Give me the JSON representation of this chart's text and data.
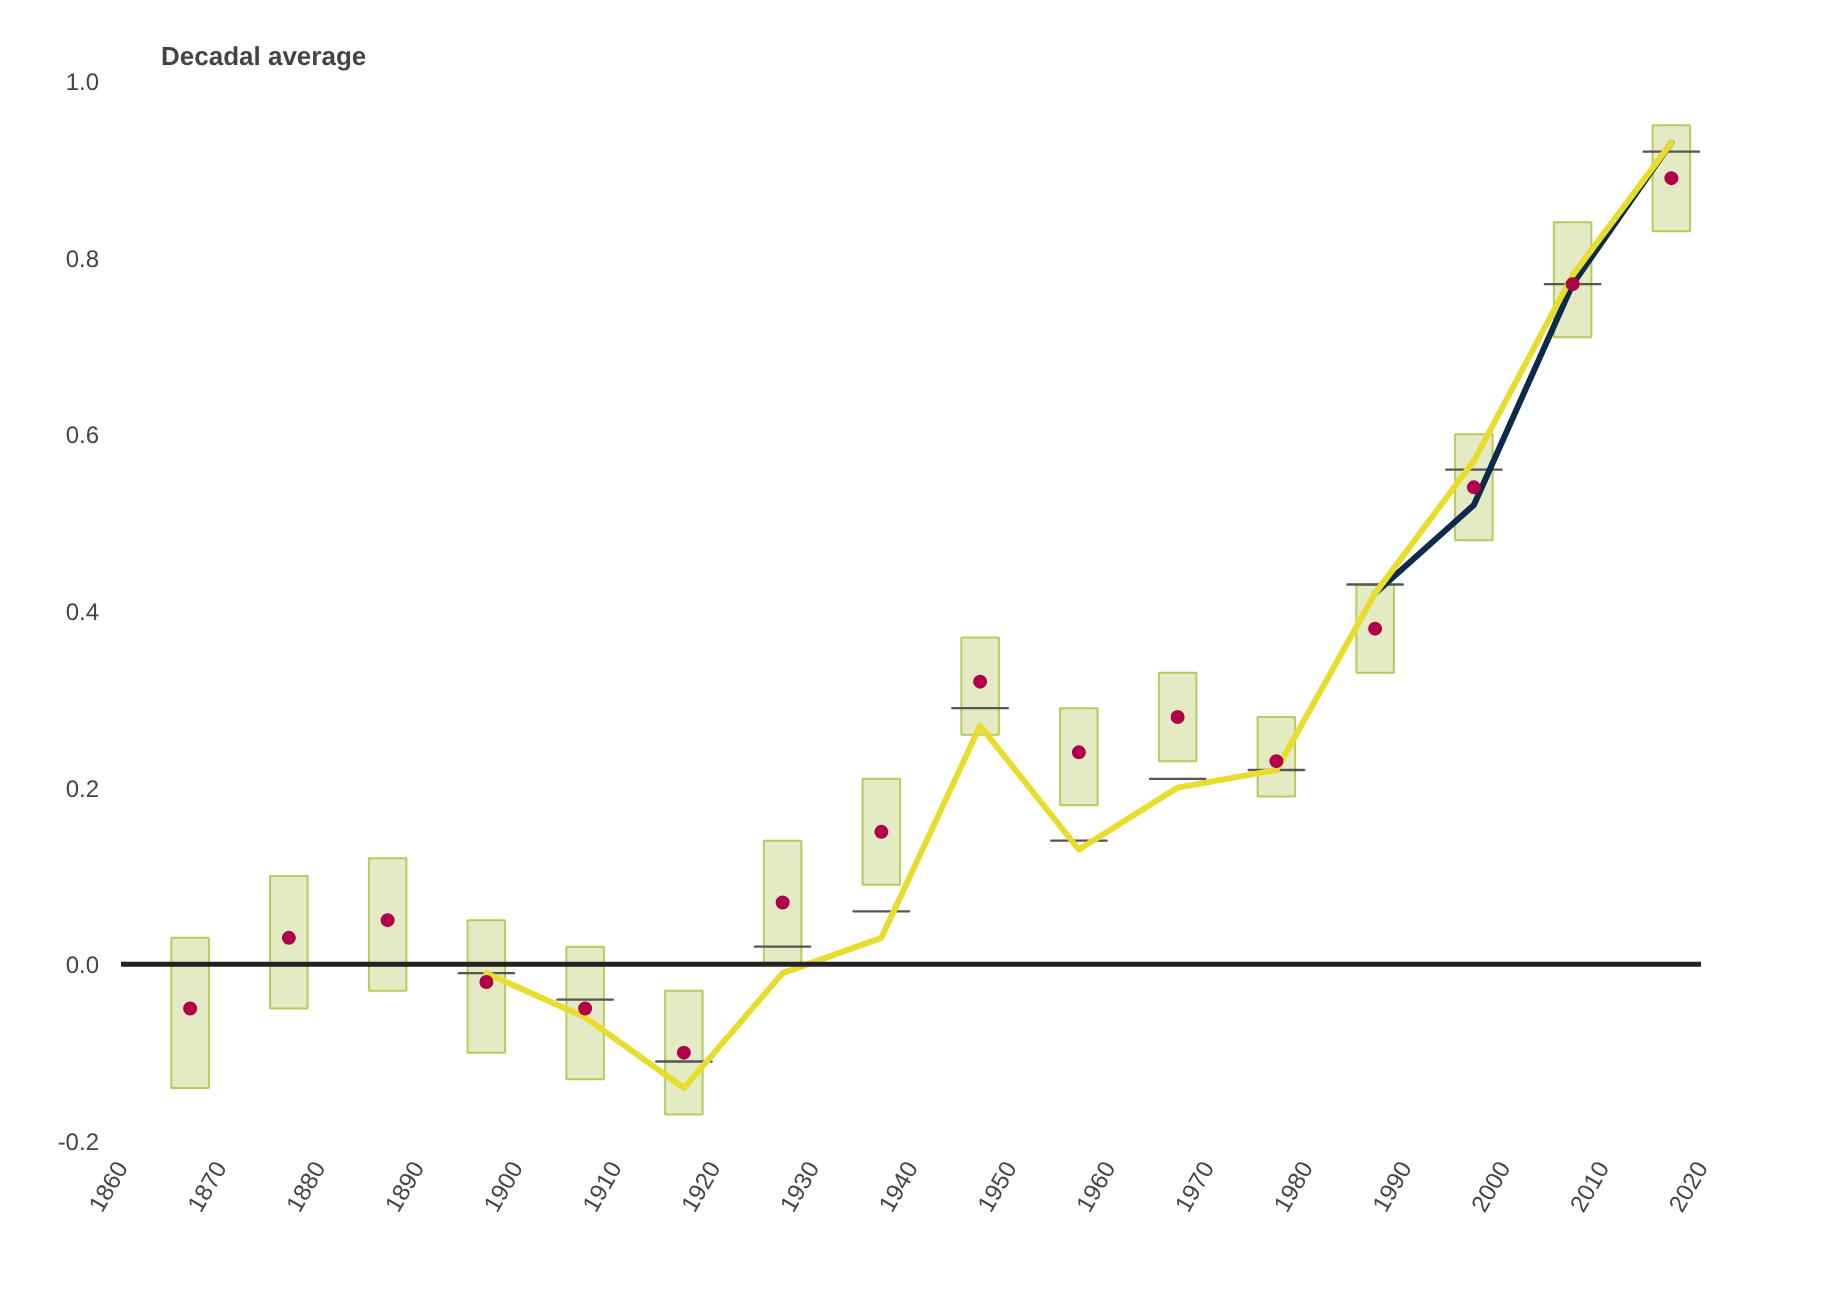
{
  "chart_data": {
    "type": "bar",
    "title": "Decadal average",
    "x": [
      1867,
      1877,
      1887,
      1897,
      1907,
      1917,
      1927,
      1937,
      1947,
      1957,
      1967,
      1977,
      1987,
      1997,
      2007,
      2017
    ],
    "series": [
      {
        "color": "#e4ebc4",
        "base": [
          -0.14,
          -0.05,
          -0.03,
          -0.1,
          -0.13,
          -0.17,
          0.0,
          0.09,
          0.26,
          0.18,
          0.23,
          0.19,
          0.33,
          0.48,
          0.71,
          0.83
        ],
        "values": [
          0.17,
          0.15,
          0.15,
          0.15,
          0.15,
          0.14,
          0.14,
          0.12,
          0.11,
          0.11,
          0.1,
          0.09,
          0.1,
          0.12,
          0.13,
          0.12
        ]
      },
      {
        "type": "line",
        "color": "#555555",
        "x": [
          1894.2,
          1899.8
        ],
        "values": [
          -0.01,
          -0.01
        ]
      },
      {
        "type": "line",
        "color": "#555555",
        "x": [
          1904.2,
          1909.8
        ],
        "values": [
          -0.04,
          -0.04
        ]
      },
      {
        "type": "line",
        "color": "#555555",
        "x": [
          1914.2,
          1919.8
        ],
        "values": [
          -0.11,
          -0.11
        ]
      },
      {
        "type": "line",
        "color": "#555555",
        "x": [
          1924.2,
          1929.8
        ],
        "values": [
          0.02,
          0.02
        ]
      },
      {
        "type": "line",
        "color": "#555555",
        "x": [
          1934.2,
          1939.8
        ],
        "values": [
          0.06,
          0.06
        ]
      },
      {
        "type": "line",
        "color": "#555555",
        "x": [
          1944.2,
          1949.8
        ],
        "values": [
          0.29,
          0.29
        ]
      },
      {
        "type": "line",
        "color": "#555555",
        "x": [
          1954.2,
          1959.8
        ],
        "values": [
          0.14,
          0.14
        ]
      },
      {
        "type": "line",
        "color": "#555555",
        "x": [
          1964.2,
          1969.8
        ],
        "values": [
          0.21,
          0.21
        ]
      },
      {
        "type": "line",
        "color": "#555555",
        "x": [
          1974.2,
          1979.8
        ],
        "values": [
          0.22,
          0.22
        ]
      },
      {
        "type": "line",
        "color": "#555555",
        "x": [
          1984.2,
          1989.8
        ],
        "values": [
          0.43,
          0.43
        ]
      },
      {
        "type": "line",
        "color": "#555555",
        "x": [
          1994.2,
          1999.8
        ],
        "values": [
          0.56,
          0.56
        ]
      },
      {
        "type": "line",
        "color": "#555555",
        "x": [
          2004.2,
          2009.8
        ],
        "values": [
          0.77,
          0.77
        ]
      },
      {
        "type": "line",
        "color": "#555555",
        "x": [
          2014.2,
          2019.8
        ],
        "values": [
          0.92,
          0.92
        ]
      },
      {
        "type": "line",
        "color": "#0d2a4a",
        "values": [
          null,
          null,
          null,
          null,
          null,
          null,
          null,
          null,
          null,
          null,
          null,
          null,
          0.42,
          0.52,
          0.77,
          0.93
        ]
      },
      {
        "type": "line",
        "color": "#e8dc2c",
        "values": [
          null,
          null,
          null,
          -0.01,
          -0.06,
          -0.14,
          -0.01,
          0.03,
          0.27,
          0.13,
          0.2,
          0.22,
          0.42,
          0.57,
          0.78,
          0.93
        ]
      },
      {
        "type": "scatter",
        "marker": "circle",
        "color": "#b0004a",
        "values": [
          -0.05,
          0.03,
          0.05,
          -0.02,
          -0.05,
          -0.1,
          0.07,
          0.15,
          0.32,
          0.24,
          0.28,
          0.23,
          0.38,
          0.54,
          0.77,
          0.89
        ]
      }
    ],
    "xlim": [
      1860,
      2020
    ],
    "xticks": [
      1860,
      1870,
      1880,
      1890,
      1900,
      1910,
      1920,
      1930,
      1940,
      1950,
      1960,
      1970,
      1980,
      1990,
      2000,
      2010,
      2020
    ],
    "ylim": [
      -0.2,
      1.0
    ],
    "yticks": [
      {
        "value": -0.2,
        "label": "-0.2"
      },
      {
        "value": 0,
        "label": "0.0"
      },
      {
        "value": 0.2,
        "label": "0.2"
      },
      {
        "value": 0.4,
        "label": "0.4"
      },
      {
        "value": 0.6,
        "label": "0.6"
      },
      {
        "value": 0.8,
        "label": "0.8"
      },
      {
        "value": 1.0,
        "label": "1.0"
      }
    ],
    "ref_lines": [
      {
        "axis": "y",
        "value": 0,
        "color": "#222222"
      }
    ],
    "grid": false
  }
}
